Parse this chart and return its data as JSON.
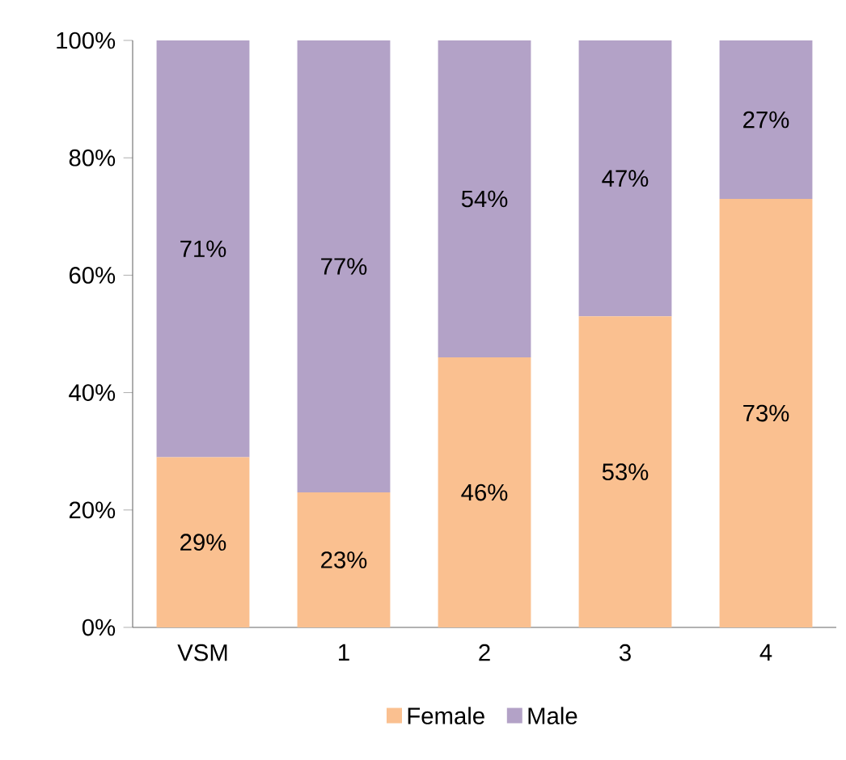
{
  "chart_data": {
    "type": "bar",
    "stacked": true,
    "categories": [
      "VSM",
      "1",
      "2",
      "3",
      "4"
    ],
    "series": [
      {
        "name": "Female",
        "color": "#fac090",
        "values": [
          29,
          23,
          46,
          53,
          73
        ],
        "value_labels": [
          "29%",
          "23%",
          "46%",
          "53%",
          "73%"
        ]
      },
      {
        "name": "Male",
        "color": "#b3a2c7",
        "values": [
          71,
          77,
          54,
          47,
          27
        ],
        "value_labels": [
          "71%",
          "77%",
          "54%",
          "47%",
          "27%"
        ]
      }
    ],
    "ylim": [
      0,
      100
    ],
    "yticks": [
      {
        "value": 0,
        "label": "0%"
      },
      {
        "value": 20,
        "label": "20%"
      },
      {
        "value": 40,
        "label": "40%"
      },
      {
        "value": 60,
        "label": "60%"
      },
      {
        "value": 80,
        "label": "80%"
      },
      {
        "value": 100,
        "label": "100%"
      }
    ],
    "legend": "bottom"
  }
}
